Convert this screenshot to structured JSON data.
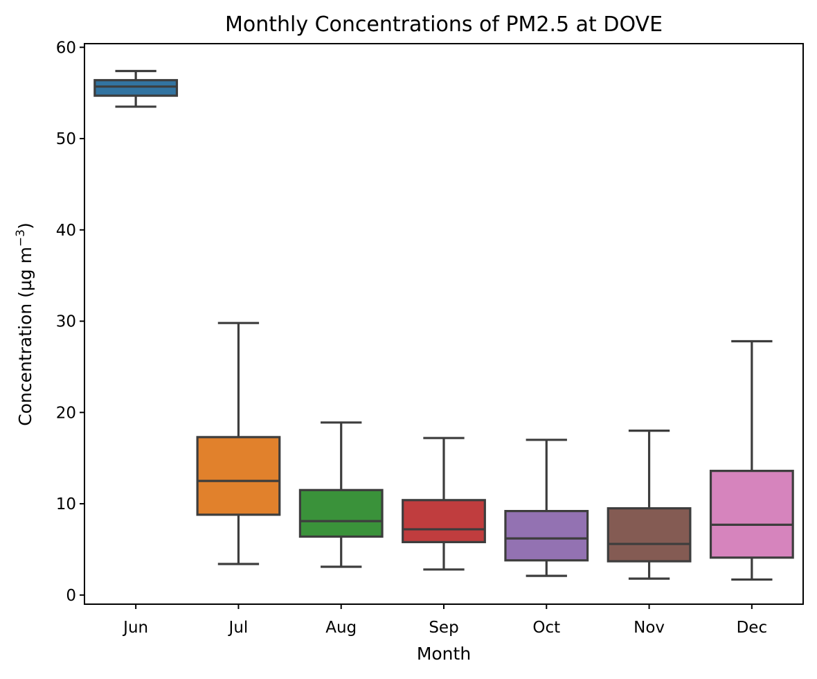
{
  "chart_data": {
    "type": "box",
    "title": "Monthly Concentrations of PM2.5 at DOVE",
    "xlabel": "Month",
    "ylabel": "Concentration (µg m",
    "ylabel_superscript": "−3",
    "ylabel_suffix": ")",
    "ylim": [
      -1,
      60.4
    ],
    "yticks": [
      0,
      10,
      20,
      30,
      40,
      50,
      60
    ],
    "grid": false,
    "categories": [
      "Jun",
      "Jul",
      "Aug",
      "Sep",
      "Oct",
      "Nov",
      "Dec"
    ],
    "boxes": [
      {
        "label": "Jun",
        "whisker_low": 53.5,
        "q1": 54.7,
        "median": 55.7,
        "q3": 56.4,
        "whisker_high": 57.4,
        "color": "#3274a1"
      },
      {
        "label": "Jul",
        "whisker_low": 3.4,
        "q1": 8.8,
        "median": 12.5,
        "q3": 17.3,
        "whisker_high": 29.8,
        "color": "#e1812c"
      },
      {
        "label": "Aug",
        "whisker_low": 3.1,
        "q1": 6.4,
        "median": 8.1,
        "q3": 11.5,
        "whisker_high": 18.9,
        "color": "#3a923a"
      },
      {
        "label": "Sep",
        "whisker_low": 2.8,
        "q1": 5.8,
        "median": 7.2,
        "q3": 10.4,
        "whisker_high": 17.2,
        "color": "#c03d3e"
      },
      {
        "label": "Oct",
        "whisker_low": 2.1,
        "q1": 3.8,
        "median": 6.2,
        "q3": 9.2,
        "whisker_high": 17.0,
        "color": "#9372b2"
      },
      {
        "label": "Nov",
        "whisker_low": 1.8,
        "q1": 3.7,
        "median": 5.6,
        "q3": 9.5,
        "whisker_high": 18.0,
        "color": "#845b53"
      },
      {
        "label": "Dec",
        "whisker_low": 1.7,
        "q1": 4.1,
        "median": 7.7,
        "q3": 13.6,
        "whisker_high": 27.8,
        "color": "#d684bd"
      }
    ]
  }
}
